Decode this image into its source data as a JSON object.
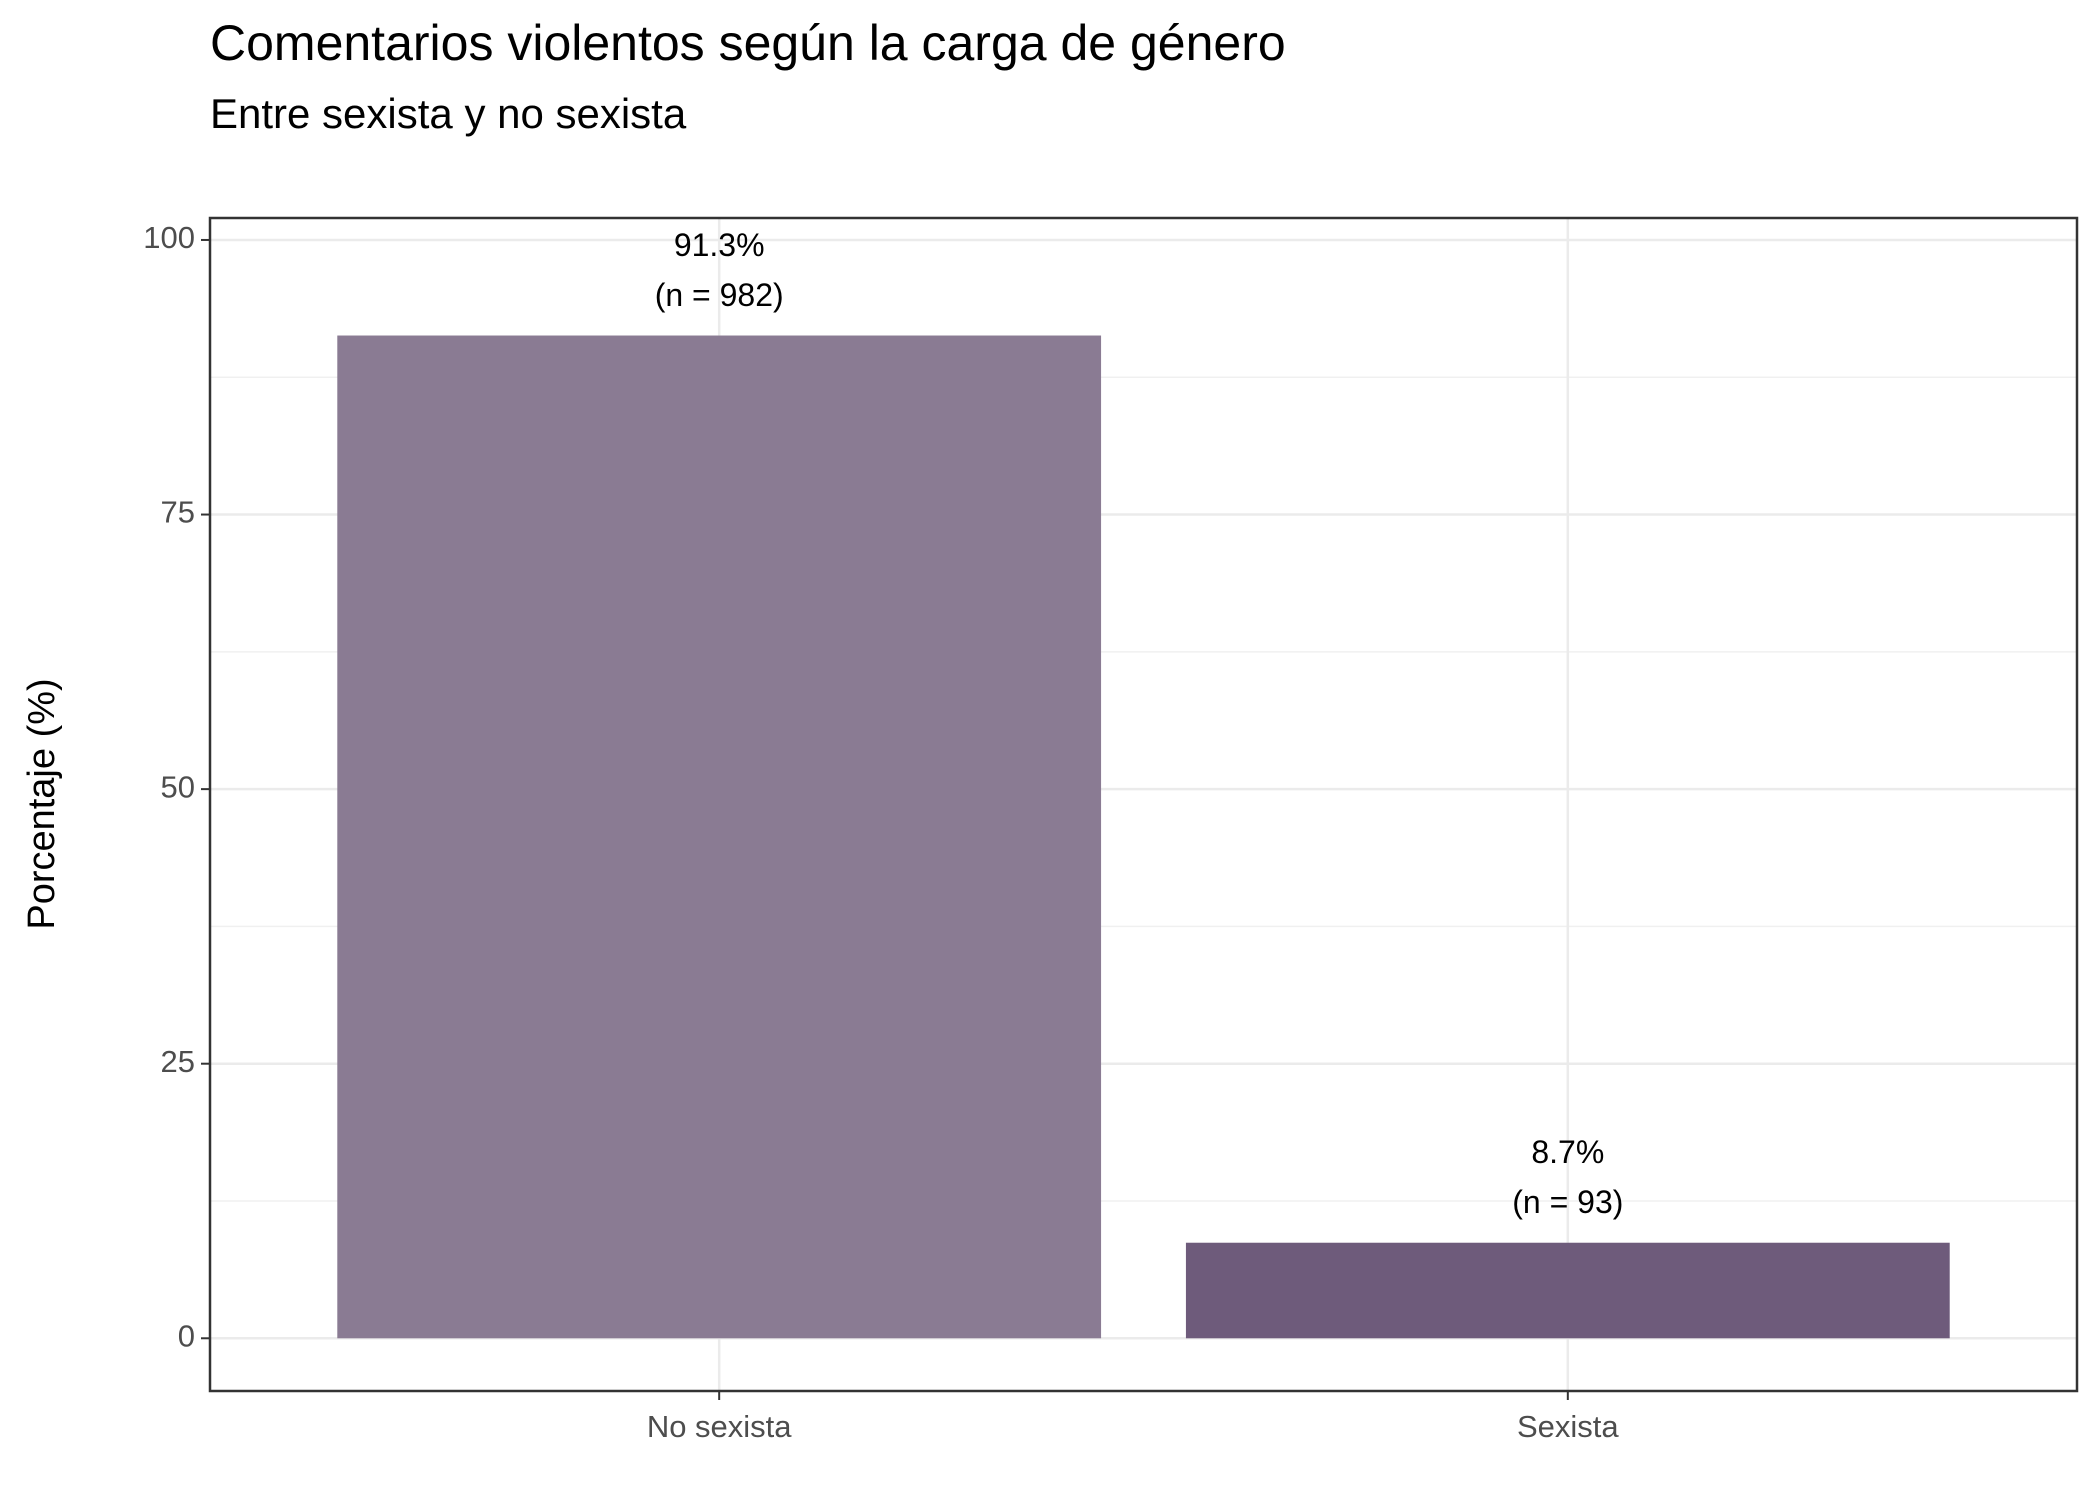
{
  "chart_data": {
    "type": "bar",
    "title": "Comentarios violentos según la carga de género",
    "subtitle": "Entre sexista y no sexista",
    "y_label": "Porcentaje (%)",
    "categories": [
      "No sexista",
      "Sexista"
    ],
    "values": [
      91.3,
      8.7
    ],
    "value_labels": [
      "91.3%",
      "8.7%"
    ],
    "n_labels": [
      "(n = 982)",
      "(n = 93)"
    ],
    "colors": [
      "#8a7b93",
      "#6e5b7b"
    ],
    "ylim": [
      -4.8,
      102
    ],
    "yticks": [
      0,
      25,
      50,
      75,
      100
    ],
    "grid": true,
    "minor_grid": true
  }
}
